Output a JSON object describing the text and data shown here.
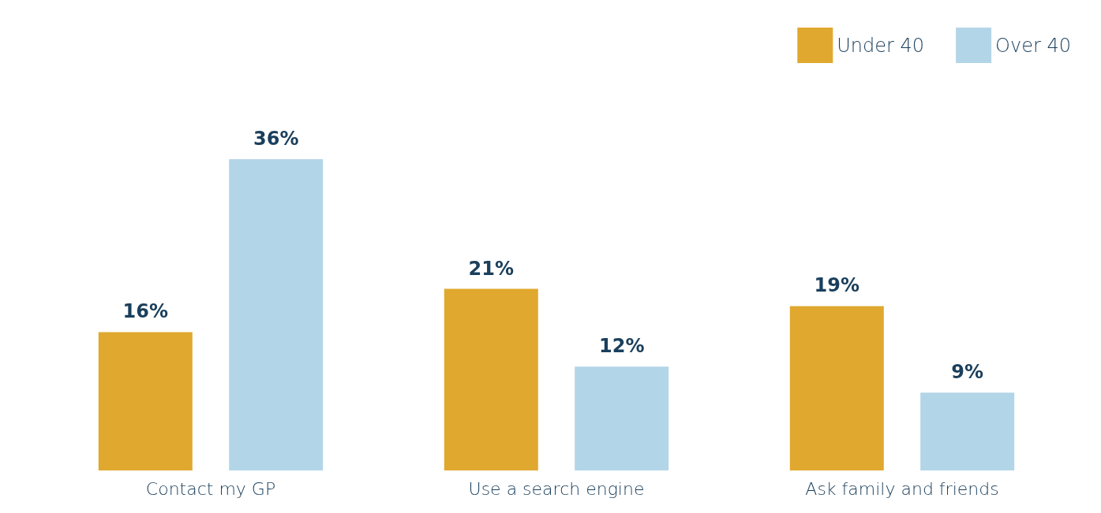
{
  "chart_data": {
    "type": "bar",
    "categories": [
      "Contact my GP",
      "Use a search engine",
      "Ask family and friends"
    ],
    "series": [
      {
        "name": "Under 40",
        "color": "#e0a82e",
        "values": [
          16,
          21,
          19
        ],
        "value_labels": [
          "16%",
          "21%",
          "19%"
        ]
      },
      {
        "name": "Over 40",
        "color": "#b3d5e8",
        "values": [
          36,
          12,
          9
        ],
        "value_labels": [
          "36%",
          "12%",
          "9%"
        ]
      }
    ],
    "legend": "top right"
  }
}
